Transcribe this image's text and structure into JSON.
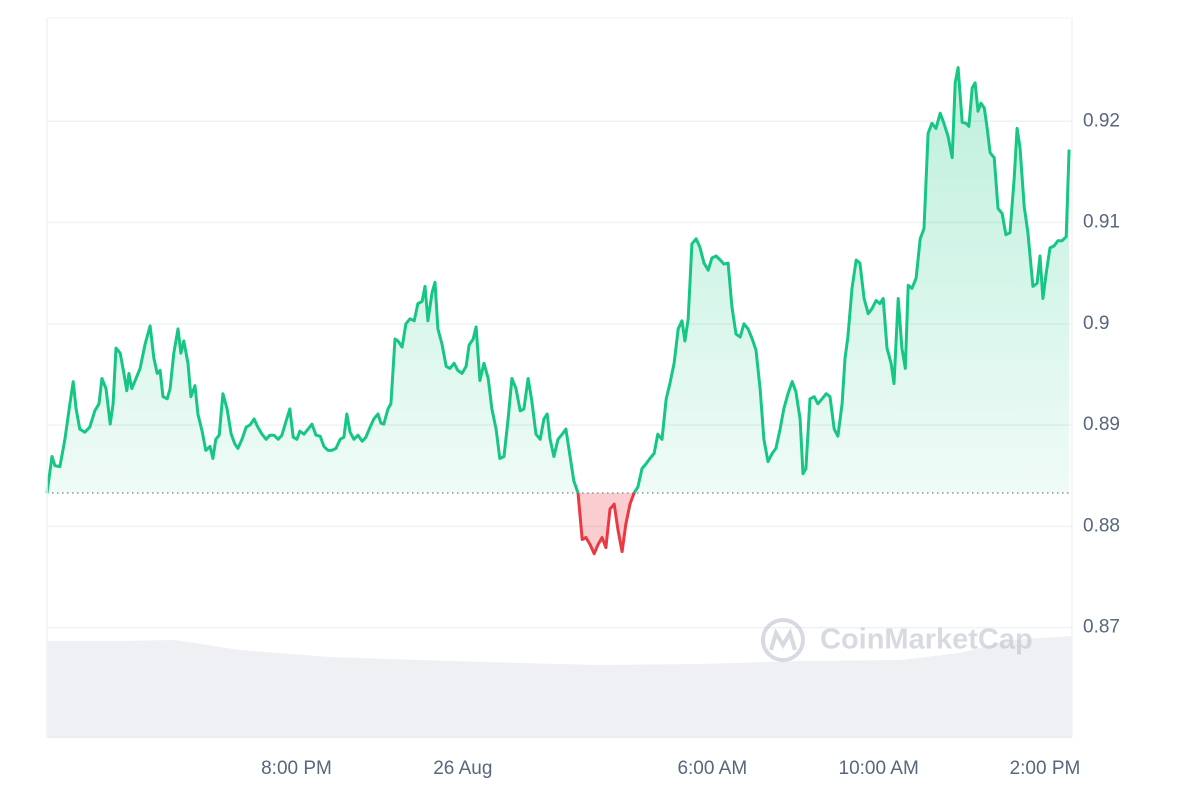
{
  "chart_data": {
    "type": "line",
    "watermark": "CoinMarketCap",
    "xlim": [
      -10,
      14.65
    ],
    "xticks": [
      {
        "value": -4,
        "label": "8:00 PM"
      },
      {
        "value": 0,
        "label": "26 Aug"
      },
      {
        "value": 6,
        "label": "6:00 AM"
      },
      {
        "value": 10,
        "label": "10:00 AM"
      },
      {
        "value": 14,
        "label": "2:00 PM"
      }
    ],
    "ylim": [
      0.8592,
      0.9302
    ],
    "yticks": [
      0.87,
      0.88,
      0.89,
      0.9,
      0.91,
      0.92
    ],
    "grid": true,
    "reference_value": 0.8833,
    "x": [
      -10,
      -9.88,
      -9.81,
      -9.69,
      -9.57,
      -9.45,
      -9.37,
      -9.3,
      -9.21,
      -9.09,
      -8.97,
      -8.85,
      -8.75,
      -8.68,
      -8.58,
      -8.48,
      -8.41,
      -8.34,
      -8.24,
      -8.15,
      -8.08,
      -8.03,
      -7.96,
      -7.86,
      -7.76,
      -7.64,
      -7.52,
      -7.43,
      -7.35,
      -7.28,
      -7.21,
      -7.11,
      -7.04,
      -6.95,
      -6.85,
      -6.78,
      -6.71,
      -6.61,
      -6.54,
      -6.44,
      -6.37,
      -6.27,
      -6.18,
      -6.08,
      -6.01,
      -5.94,
      -5.86,
      -5.77,
      -5.67,
      -5.57,
      -5.48,
      -5.41,
      -5.31,
      -5.21,
      -5.12,
      -5.02,
      -4.93,
      -4.83,
      -4.73,
      -4.64,
      -4.54,
      -4.44,
      -4.35,
      -4.25,
      -4.16,
      -4.08,
      -3.99,
      -3.92,
      -3.82,
      -3.72,
      -3.63,
      -3.53,
      -3.43,
      -3.34,
      -3.24,
      -3.15,
      -3.05,
      -2.95,
      -2.86,
      -2.79,
      -2.71,
      -2.62,
      -2.52,
      -2.42,
      -2.33,
      -2.23,
      -2.14,
      -2.04,
      -1.97,
      -1.9,
      -1.8,
      -1.73,
      -1.63,
      -1.56,
      -1.46,
      -1.37,
      -1.27,
      -1.17,
      -1.08,
      -0.98,
      -0.91,
      -0.84,
      -0.74,
      -0.67,
      -0.6,
      -0.5,
      -0.4,
      -0.31,
      -0.21,
      -0.12,
      -0.02,
      0.08,
      0.15,
      0.25,
      0.32,
      0.41,
      0.51,
      0.61,
      0.7,
      0.8,
      0.89,
      0.99,
      1.09,
      1.18,
      1.28,
      1.38,
      1.47,
      1.57,
      1.66,
      1.76,
      1.86,
      1.95,
      2.03,
      2.1,
      2.19,
      2.29,
      2.39,
      2.48,
      2.58,
      2.67,
      2.77,
      2.87,
      2.96,
      3.06,
      3.16,
      3.25,
      3.35,
      3.44,
      3.54,
      3.64,
      3.73,
      3.83,
      3.92,
      4.02,
      4.12,
      4.21,
      4.31,
      4.41,
      4.5,
      4.6,
      4.69,
      4.79,
      4.89,
      4.98,
      5.08,
      5.18,
      5.27,
      5.34,
      5.42,
      5.51,
      5.61,
      5.7,
      5.8,
      5.9,
      5.99,
      6.09,
      6.19,
      6.28,
      6.38,
      6.47,
      6.57,
      6.67,
      6.76,
      6.86,
      6.96,
      7.05,
      7.15,
      7.24,
      7.34,
      7.44,
      7.53,
      7.63,
      7.72,
      7.82,
      7.92,
      8.01,
      8.11,
      8.18,
      8.25,
      8.35,
      8.45,
      8.54,
      8.64,
      8.74,
      8.83,
      8.93,
      9.02,
      9.12,
      9.19,
      9.26,
      9.36,
      9.46,
      9.55,
      9.65,
      9.75,
      9.84,
      9.94,
      10.03,
      10.11,
      10.2,
      10.3,
      10.37,
      10.47,
      10.56,
      10.64,
      10.71,
      10.8,
      10.9,
      11,
      11.09,
      11.19,
      11.28,
      11.38,
      11.48,
      11.57,
      11.67,
      11.77,
      11.84,
      11.91,
      12.01,
      12.1,
      12.17,
      12.25,
      12.32,
      12.39,
      12.46,
      12.54,
      12.61,
      12.68,
      12.78,
      12.87,
      12.97,
      13.06,
      13.16,
      13.26,
      13.33,
      13.4,
      13.5,
      13.59,
      13.71,
      13.81,
      13.88,
      13.95,
      14.03,
      14.12,
      14.22,
      14.31,
      14.41,
      14.51,
      14.58
    ],
    "series": [
      {
        "color": "#16c784",
        "negative_color": "#ea3943",
        "values": [
          0.8833,
          0.8869,
          0.886,
          0.8859,
          0.8886,
          0.8921,
          0.8943,
          0.8916,
          0.8896,
          0.8893,
          0.8898,
          0.8914,
          0.8921,
          0.8946,
          0.8936,
          0.8901,
          0.8921,
          0.8976,
          0.8971,
          0.8951,
          0.8934,
          0.8951,
          0.8936,
          0.8946,
          0.8956,
          0.898,
          0.8998,
          0.8966,
          0.8951,
          0.8954,
          0.8928,
          0.8926,
          0.8936,
          0.8971,
          0.8995,
          0.8971,
          0.8983,
          0.8961,
          0.8928,
          0.8939,
          0.8911,
          0.8894,
          0.8875,
          0.8879,
          0.8867,
          0.8886,
          0.889,
          0.8931,
          0.8916,
          0.8891,
          0.8881,
          0.8877,
          0.8886,
          0.8898,
          0.89,
          0.8906,
          0.8898,
          0.8891,
          0.8886,
          0.889,
          0.889,
          0.8886,
          0.889,
          0.8904,
          0.8916,
          0.8888,
          0.8886,
          0.8894,
          0.8891,
          0.8896,
          0.8901,
          0.889,
          0.8889,
          0.8879,
          0.8875,
          0.8875,
          0.8877,
          0.8886,
          0.8888,
          0.8911,
          0.8893,
          0.8886,
          0.889,
          0.8884,
          0.8888,
          0.8898,
          0.8906,
          0.8911,
          0.8902,
          0.8901,
          0.8916,
          0.8921,
          0.8985,
          0.8983,
          0.8977,
          0.9,
          0.9005,
          0.9003,
          0.902,
          0.9022,
          0.9037,
          0.9003,
          0.9031,
          0.9041,
          0.8995,
          0.898,
          0.8958,
          0.8956,
          0.8961,
          0.8954,
          0.8951,
          0.8958,
          0.8979,
          0.8985,
          0.8997,
          0.8944,
          0.8961,
          0.8946,
          0.8916,
          0.8896,
          0.8867,
          0.8869,
          0.8906,
          0.8946,
          0.8936,
          0.8914,
          0.8916,
          0.8946,
          0.8924,
          0.8891,
          0.8886,
          0.8906,
          0.8911,
          0.8886,
          0.8869,
          0.8886,
          0.8891,
          0.8896,
          0.8869,
          0.8845,
          0.8833,
          0.8787,
          0.8789,
          0.8782,
          0.8773,
          0.8782,
          0.8789,
          0.8779,
          0.8817,
          0.8822,
          0.8797,
          0.8775,
          0.8802,
          0.8822,
          0.8833,
          0.8839,
          0.8857,
          0.8862,
          0.8867,
          0.8872,
          0.8891,
          0.8886,
          0.8926,
          0.8941,
          0.8961,
          0.8995,
          0.9003,
          0.8983,
          0.9005,
          0.9079,
          0.9084,
          0.9076,
          0.906,
          0.9053,
          0.9065,
          0.9067,
          0.9063,
          0.9059,
          0.906,
          0.9017,
          0.899,
          0.8987,
          0.9,
          0.8995,
          0.8985,
          0.8974,
          0.8936,
          0.8886,
          0.8864,
          0.8872,
          0.8877,
          0.8896,
          0.8916,
          0.8931,
          0.8943,
          0.8933,
          0.8906,
          0.8852,
          0.8857,
          0.8926,
          0.8928,
          0.8921,
          0.8926,
          0.8931,
          0.8928,
          0.8896,
          0.8889,
          0.8921,
          0.8966,
          0.8987,
          0.9035,
          0.9063,
          0.906,
          0.9025,
          0.901,
          0.9015,
          0.9023,
          0.902,
          0.9025,
          0.8976,
          0.8961,
          0.8941,
          0.9025,
          0.8976,
          0.8956,
          0.9038,
          0.9035,
          0.9045,
          0.9084,
          0.9094,
          0.9188,
          0.9198,
          0.9193,
          0.9208,
          0.9198,
          0.9185,
          0.9164,
          0.9238,
          0.9253,
          0.9199,
          0.9198,
          0.9195,
          0.9233,
          0.9238,
          0.921,
          0.9218,
          0.9213,
          0.9193,
          0.9169,
          0.9164,
          0.9114,
          0.9109,
          0.9088,
          0.909,
          0.9144,
          0.9193,
          0.9174,
          0.9116,
          0.909,
          0.9037,
          0.904,
          0.9067,
          0.9025,
          0.905,
          0.9075,
          0.9077,
          0.9082,
          0.9082,
          0.9086,
          0.9172
        ]
      }
    ]
  }
}
